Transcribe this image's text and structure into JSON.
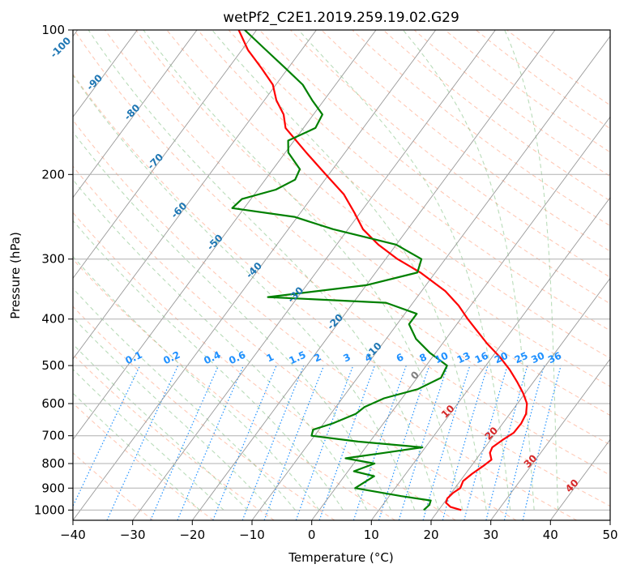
{
  "chart_data": {
    "type": "line",
    "chart_kind": "skew-T log-P sounding",
    "title": "wetPf2_C2E1.2019.259.19.02.G29",
    "xlabel": "Temperature (°C)",
    "ylabel": "Pressure (hPa)",
    "xlim": [
      -40,
      50
    ],
    "ylim": [
      1050,
      100
    ],
    "y_scale": "log",
    "grid": true,
    "x_ticks": [
      -40,
      -30,
      -20,
      -10,
      0,
      10,
      20,
      30,
      40,
      50
    ],
    "y_ticks": [
      100,
      200,
      300,
      400,
      500,
      600,
      700,
      800,
      900,
      1000
    ],
    "series": [
      {
        "role": "temperature",
        "color": "#ff0000",
        "points": [
          [
            1000,
            23.8
          ],
          [
            985,
            21.6
          ],
          [
            965,
            20.3
          ],
          [
            945,
            20.0
          ],
          [
            920,
            20.3
          ],
          [
            900,
            20.9
          ],
          [
            870,
            20.5
          ],
          [
            840,
            21.1
          ],
          [
            810,
            22.0
          ],
          [
            785,
            22.6
          ],
          [
            760,
            21.5
          ],
          [
            740,
            21.2
          ],
          [
            715,
            22.0
          ],
          [
            690,
            23.0
          ],
          [
            660,
            23.1
          ],
          [
            630,
            22.7
          ],
          [
            600,
            21.6
          ],
          [
            570,
            19.6
          ],
          [
            540,
            17.2
          ],
          [
            510,
            14.5
          ],
          [
            480,
            11.3
          ],
          [
            450,
            7.5
          ],
          [
            420,
            3.8
          ],
          [
            400,
            1.2
          ],
          [
            375,
            -2.0
          ],
          [
            350,
            -6.0
          ],
          [
            320,
            -12.5
          ],
          [
            300,
            -18.0
          ],
          [
            280,
            -23.0
          ],
          [
            260,
            -27.5
          ],
          [
            240,
            -31.0
          ],
          [
            220,
            -35.0
          ],
          [
            200,
            -40.5
          ],
          [
            180,
            -46.5
          ],
          [
            160,
            -53.0
          ],
          [
            150,
            -55.0
          ],
          [
            140,
            -58.0
          ],
          [
            130,
            -60.5
          ],
          [
            120,
            -64.5
          ],
          [
            110,
            -69.0
          ],
          [
            100,
            -73.0
          ]
        ]
      },
      {
        "role": "dewpoint",
        "color": "#008000",
        "points": [
          [
            1000,
            17.5
          ],
          [
            975,
            17.8
          ],
          [
            955,
            17.5
          ],
          [
            935,
            12.0
          ],
          [
            900,
            3.3
          ],
          [
            850,
            5.0
          ],
          [
            830,
            1.0
          ],
          [
            800,
            3.5
          ],
          [
            780,
            -2.0
          ],
          [
            760,
            3.8
          ],
          [
            740,
            9.5
          ],
          [
            720,
            -2.0
          ],
          [
            700,
            -10.5
          ],
          [
            680,
            -11.0
          ],
          [
            660,
            -8.5
          ],
          [
            630,
            -5.8
          ],
          [
            610,
            -5.2
          ],
          [
            585,
            -3.0
          ],
          [
            560,
            1.5
          ],
          [
            530,
            4.0
          ],
          [
            500,
            3.5
          ],
          [
            470,
            -1.0
          ],
          [
            440,
            -5.0
          ],
          [
            410,
            -8.0
          ],
          [
            390,
            -8.0
          ],
          [
            370,
            -14.5
          ],
          [
            360,
            -35.0
          ],
          [
            340,
            -20.0
          ],
          [
            320,
            -13.0
          ],
          [
            300,
            -14.0
          ],
          [
            280,
            -20.0
          ],
          [
            260,
            -32.5
          ],
          [
            245,
            -40.5
          ],
          [
            235,
            -52.0
          ],
          [
            225,
            -51.5
          ],
          [
            215,
            -47.0
          ],
          [
            205,
            -45.0
          ],
          [
            195,
            -45.5
          ],
          [
            180,
            -49.5
          ],
          [
            170,
            -51.0
          ],
          [
            160,
            -48.0
          ],
          [
            150,
            -48.5
          ],
          [
            140,
            -52.0
          ],
          [
            130,
            -55.5
          ],
          [
            120,
            -60.5
          ],
          [
            110,
            -66.0
          ],
          [
            100,
            -72.0
          ]
        ]
      }
    ],
    "dry_adiabat_labels": [
      "-100",
      "-90",
      "-80",
      "-70",
      "-60",
      "-50",
      "-40",
      "-30",
      "-20",
      "-10",
      "0",
      "10",
      "20",
      "30",
      "40"
    ],
    "mixing_ratio_labels": [
      "0.1",
      "0.2",
      "0.4",
      "0.6",
      "1",
      "1.5",
      "2",
      "3",
      "4",
      "6",
      "8",
      "10",
      "13",
      "16",
      "20",
      "25",
      "30",
      "36"
    ],
    "colors": {
      "isotherms": "#000000",
      "isobars": "#000000",
      "dry_adiabats": "#ff9c7a",
      "moist_adiabats": "#7fbf7f",
      "mixing_ratio": "#1e90ff",
      "temperature": "#ff0000",
      "dewpoint": "#008000"
    }
  }
}
